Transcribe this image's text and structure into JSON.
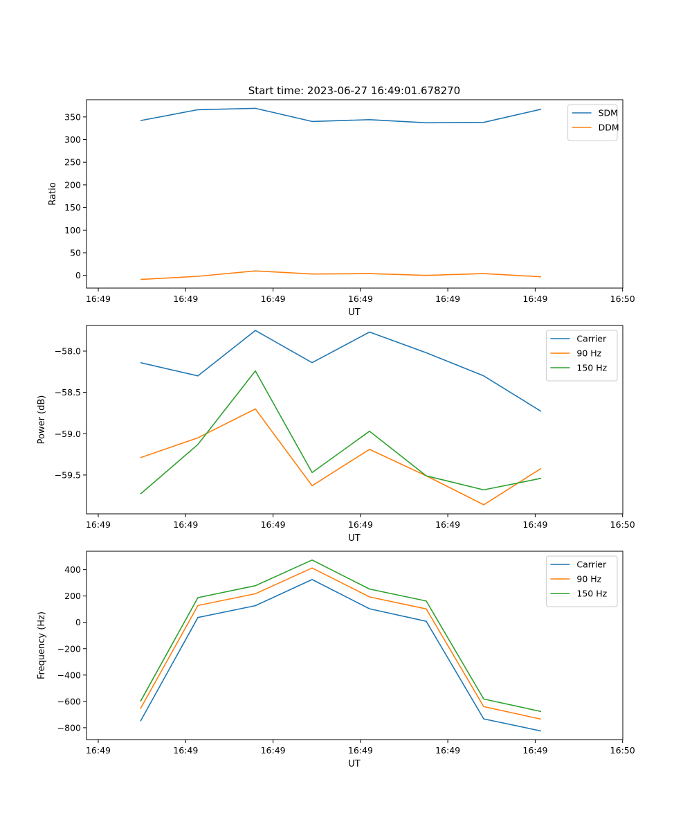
{
  "figure_title": "Start time: 2023-06-27 16:49:01.678270",
  "colors": {
    "blue": "#1f77b4",
    "orange": "#ff7f0e",
    "green": "#2ca02c"
  },
  "chart_data": [
    {
      "type": "line",
      "xlabel": "UT",
      "ylabel": "Ratio",
      "x_tick_labels": [
        "16:49",
        "16:49",
        "16:49",
        "16:49",
        "16:49",
        "16:49",
        "16:49",
        "16:50"
      ],
      "ylim": [
        -28,
        388
      ],
      "y_ticks": [
        0,
        50,
        100,
        150,
        200,
        250,
        300,
        350
      ],
      "legend_position": "top-right",
      "series": [
        {
          "name": "SDM",
          "color": "#1f77b4",
          "values": [
            342,
            366,
            369,
            340,
            344,
            337,
            338,
            367
          ]
        },
        {
          "name": "DDM",
          "color": "#ff7f0e",
          "values": [
            -9,
            -2,
            10,
            3,
            4,
            0,
            4,
            -3
          ]
        }
      ]
    },
    {
      "type": "line",
      "xlabel": "UT",
      "ylabel": "Power (dB)",
      "x_tick_labels": [
        "16:49",
        "16:49",
        "16:49",
        "16:49",
        "16:49",
        "16:49",
        "16:49",
        "16:50"
      ],
      "ylim": [
        -59.97,
        -57.69
      ],
      "y_ticks": [
        -59.5,
        -59.0,
        -58.5,
        -58.0
      ],
      "y_tick_labels": [
        "−59.5",
        "−59.0",
        "−58.5",
        "−58.0"
      ],
      "legend_position": "top-right",
      "series": [
        {
          "name": "Carrier",
          "color": "#1f77b4",
          "values": [
            -58.14,
            -58.3,
            -57.75,
            -58.14,
            -57.77,
            -58.02,
            -58.3,
            -58.73
          ]
        },
        {
          "name": "90 Hz",
          "color": "#ff7f0e",
          "values": [
            -59.29,
            -59.05,
            -58.7,
            -59.63,
            -59.19,
            -59.51,
            -59.86,
            -59.42
          ]
        },
        {
          "name": "150 Hz",
          "color": "#2ca02c",
          "values": [
            -59.73,
            -59.13,
            -58.24,
            -59.47,
            -58.97,
            -59.51,
            -59.68,
            -59.54
          ]
        }
      ]
    },
    {
      "type": "line",
      "xlabel": "UT",
      "ylabel": "Frequency (Hz)",
      "x_tick_labels": [
        "16:49",
        "16:49",
        "16:49",
        "16:49",
        "16:49",
        "16:49",
        "16:49",
        "16:50"
      ],
      "ylim": [
        -890,
        540
      ],
      "y_ticks": [
        -800,
        -600,
        -400,
        -200,
        0,
        200,
        400
      ],
      "y_tick_labels": [
        "−800",
        "−600",
        "−400",
        "−200",
        "0",
        "200",
        "400"
      ],
      "legend_position": "top-right",
      "series": [
        {
          "name": "Carrier",
          "color": "#1f77b4",
          "values": [
            -750,
            37,
            127,
            325,
            103,
            8,
            -733,
            -825
          ]
        },
        {
          "name": "90 Hz",
          "color": "#ff7f0e",
          "values": [
            -655,
            128,
            217,
            413,
            193,
            102,
            -640,
            -735
          ]
        },
        {
          "name": "150 Hz",
          "color": "#2ca02c",
          "values": [
            -600,
            188,
            278,
            473,
            253,
            162,
            -582,
            -677
          ]
        }
      ]
    }
  ]
}
